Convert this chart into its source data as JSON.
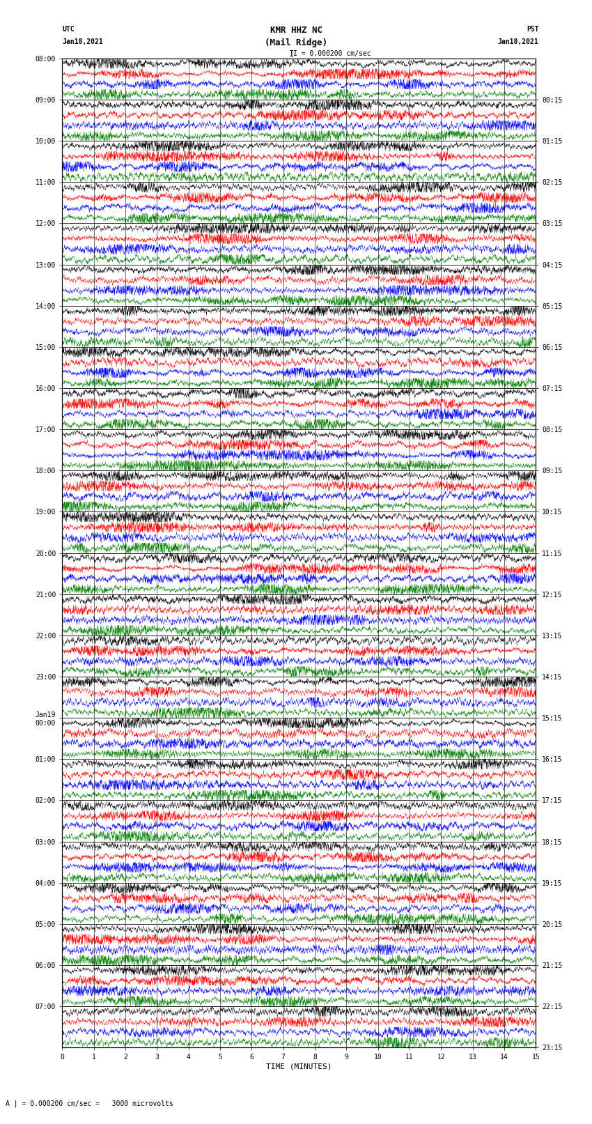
{
  "title_line1": "KMR HHZ NC",
  "title_line2": "(Mail Ridge)",
  "scale_label": "I = 0.000200 cm/sec",
  "left_label_line1": "UTC",
  "left_label_line2": "Jan18,2021",
  "right_label_line1": "PST",
  "right_label_line2": "Jan18,2021",
  "bottom_label": "TIME (MINUTES)",
  "scale_note": "A | = 0.000200 cm/sec =   3000 microvolts",
  "left_times": [
    "08:00",
    "09:00",
    "10:00",
    "11:00",
    "12:00",
    "13:00",
    "14:00",
    "15:00",
    "16:00",
    "17:00",
    "18:00",
    "19:00",
    "20:00",
    "21:00",
    "22:00",
    "23:00",
    "Jan19\n00:00",
    "01:00",
    "02:00",
    "03:00",
    "04:00",
    "05:00",
    "06:00",
    "07:00"
  ],
  "right_times": [
    "00:15",
    "01:15",
    "02:15",
    "03:15",
    "04:15",
    "05:15",
    "06:15",
    "07:15",
    "08:15",
    "09:15",
    "10:15",
    "11:15",
    "12:15",
    "13:15",
    "14:15",
    "15:15",
    "16:15",
    "17:15",
    "18:15",
    "19:15",
    "20:15",
    "21:15",
    "22:15",
    "23:15"
  ],
  "colors": [
    "black",
    "red",
    "blue",
    "green"
  ],
  "background_color": "white",
  "num_rows": 24,
  "traces_per_row": 4,
  "minutes_per_row": 15,
  "fig_width": 8.5,
  "fig_height": 16.13
}
